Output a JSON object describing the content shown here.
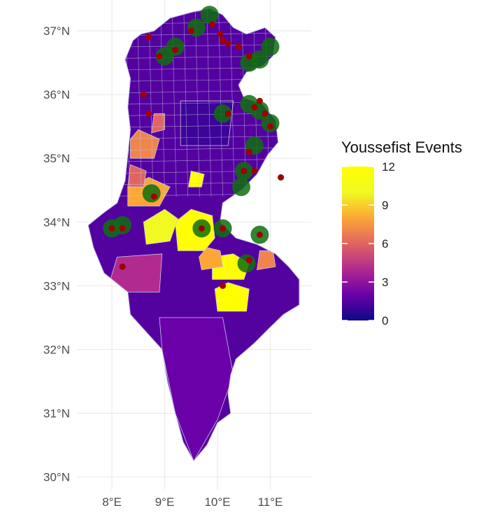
{
  "map": {
    "x_axis": {
      "ticks": [
        {
          "value": 8,
          "label": "8°E"
        },
        {
          "value": 9,
          "label": "9°E"
        },
        {
          "value": 10,
          "label": "10°E"
        },
        {
          "value": 11,
          "label": "11°E"
        }
      ]
    },
    "y_axis": {
      "ticks": [
        {
          "value": 37,
          "label": "37°N"
        },
        {
          "value": 36,
          "label": "36°N"
        },
        {
          "value": 35,
          "label": "35°N"
        },
        {
          "value": 34,
          "label": "34°N"
        },
        {
          "value": 33,
          "label": "33°N"
        },
        {
          "value": 32,
          "label": "32°N"
        },
        {
          "value": 31,
          "label": "31°N"
        },
        {
          "value": 30,
          "label": "30°N"
        }
      ]
    },
    "legend": {
      "title": "Youssefist Events",
      "min": 0,
      "max": 12,
      "ticks": [
        {
          "value": 12,
          "label": "12"
        },
        {
          "value": 9,
          "label": "9"
        },
        {
          "value": 6,
          "label": "6"
        },
        {
          "value": 3,
          "label": "3"
        },
        {
          "value": 0,
          "label": "0"
        }
      ],
      "gradient": [
        "#0d0887",
        "#6a00a8",
        "#b12a90",
        "#e16462",
        "#fca636",
        "#f0f921",
        "#ffff00"
      ]
    },
    "colors": {
      "region_border": "#c8c8e6",
      "event_marker": "#a00000",
      "highlight_marker": "#0f6e0f",
      "grid": "#ebebeb"
    },
    "chart_data": {
      "type": "choropleth map with point markers",
      "fill_variable": "Youssefist Events",
      "regions": [
        {
          "lon": 9.5,
          "lat": 33.8,
          "value": 12
        },
        {
          "lon": 10.2,
          "lat": 33.2,
          "value": 12
        },
        {
          "lon": 10.4,
          "lat": 32.9,
          "value": 12
        },
        {
          "lon": 9.6,
          "lat": 34.6,
          "value": 12
        },
        {
          "lon": 9.2,
          "lat": 33.9,
          "value": 10
        },
        {
          "lon": 8.8,
          "lat": 34.4,
          "value": 8
        },
        {
          "lon": 10.0,
          "lat": 33.4,
          "value": 8
        },
        {
          "lon": 8.5,
          "lat": 35.2,
          "value": 7
        },
        {
          "lon": 10.9,
          "lat": 33.4,
          "value": 7
        },
        {
          "lon": 8.5,
          "lat": 34.6,
          "value": 6
        },
        {
          "lon": 8.8,
          "lat": 35.5,
          "value": 6
        },
        {
          "lon": 8.3,
          "lat": 33.0,
          "value": 4
        },
        {
          "lon": 9.5,
          "lat": 31.5,
          "value": 2
        },
        {
          "lon": 9.7,
          "lat": 35.5,
          "value": 1
        }
      ],
      "events": [
        {
          "lon": 10.2,
          "lat": 36.8
        },
        {
          "lon": 10.4,
          "lat": 36.75
        },
        {
          "lon": 10.1,
          "lat": 36.85
        },
        {
          "lon": 10.6,
          "lat": 36.6
        },
        {
          "lon": 10.05,
          "lat": 36.95
        },
        {
          "lon": 9.9,
          "lat": 37.1
        },
        {
          "lon": 10.8,
          "lat": 35.9
        },
        {
          "lon": 10.9,
          "lat": 35.7
        },
        {
          "lon": 11.0,
          "lat": 35.5
        },
        {
          "lon": 10.7,
          "lat": 35.8
        },
        {
          "lon": 10.6,
          "lat": 35.1
        },
        {
          "lon": 10.5,
          "lat": 34.8
        },
        {
          "lon": 10.7,
          "lat": 34.8
        },
        {
          "lon": 10.2,
          "lat": 35.7
        },
        {
          "lon": 9.2,
          "lat": 36.7
        },
        {
          "lon": 9.5,
          "lat": 37.0
        },
        {
          "lon": 8.7,
          "lat": 36.9
        },
        {
          "lon": 8.9,
          "lat": 36.6
        },
        {
          "lon": 8.6,
          "lat": 36.0
        },
        {
          "lon": 8.7,
          "lat": 35.7
        },
        {
          "lon": 8.8,
          "lat": 34.4
        },
        {
          "lon": 8.2,
          "lat": 33.9
        },
        {
          "lon": 8.0,
          "lat": 33.9
        },
        {
          "lon": 9.7,
          "lat": 33.9
        },
        {
          "lon": 10.1,
          "lat": 33.9
        },
        {
          "lon": 10.8,
          "lat": 33.8
        },
        {
          "lon": 10.6,
          "lat": 33.4
        },
        {
          "lon": 11.2,
          "lat": 34.7
        },
        {
          "lon": 10.1,
          "lat": 33.0
        },
        {
          "lon": 8.2,
          "lat": 33.3
        }
      ],
      "highlighted": [
        {
          "lon": 9.85,
          "lat": 37.25
        },
        {
          "lon": 9.6,
          "lat": 37.05
        },
        {
          "lon": 9.2,
          "lat": 36.75
        },
        {
          "lon": 9.0,
          "lat": 36.6
        },
        {
          "lon": 10.6,
          "lat": 36.5
        },
        {
          "lon": 10.8,
          "lat": 36.55
        },
        {
          "lon": 11.0,
          "lat": 36.75
        },
        {
          "lon": 10.1,
          "lat": 35.7
        },
        {
          "lon": 10.6,
          "lat": 35.85
        },
        {
          "lon": 10.8,
          "lat": 35.75
        },
        {
          "lon": 11.0,
          "lat": 35.55
        },
        {
          "lon": 10.7,
          "lat": 35.2
        },
        {
          "lon": 10.5,
          "lat": 34.8
        },
        {
          "lon": 10.45,
          "lat": 34.55
        },
        {
          "lon": 8.75,
          "lat": 34.45
        },
        {
          "lon": 8.0,
          "lat": 33.9
        },
        {
          "lon": 8.2,
          "lat": 33.95
        },
        {
          "lon": 9.7,
          "lat": 33.9
        },
        {
          "lon": 10.1,
          "lat": 33.9
        },
        {
          "lon": 10.8,
          "lat": 33.8
        },
        {
          "lon": 10.55,
          "lat": 33.35
        }
      ]
    }
  }
}
